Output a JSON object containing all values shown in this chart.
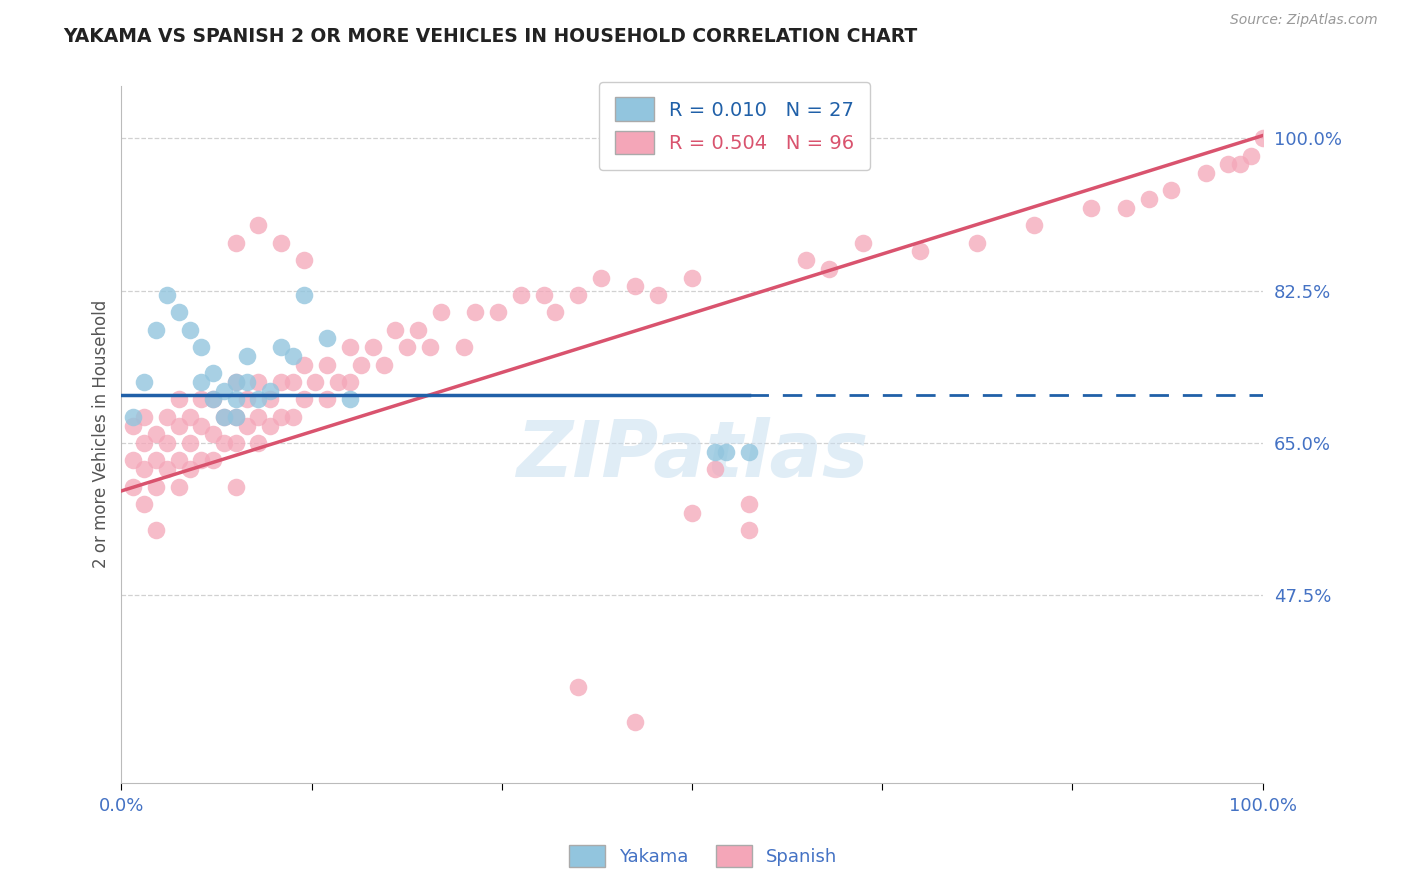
{
  "title": "YAKAMA VS SPANISH 2 OR MORE VEHICLES IN HOUSEHOLD CORRELATION CHART",
  "source_text": "Source: ZipAtlas.com",
  "ylabel": "2 or more Vehicles in Household",
  "yakama_R": 0.01,
  "yakama_N": 27,
  "spanish_R": 0.504,
  "spanish_N": 96,
  "x_min": 0.0,
  "x_max": 1.0,
  "y_min": 0.26,
  "y_max": 1.06,
  "y_ticks": [
    0.475,
    0.65,
    0.825,
    1.0
  ],
  "y_tick_labels": [
    "47.5%",
    "65.0%",
    "82.5%",
    "100.0%"
  ],
  "yakama_color": "#92c5de",
  "spanish_color": "#f4a6b8",
  "yakama_line_color": "#2060a8",
  "spanish_line_color": "#d9536e",
  "grid_color": "#cccccc",
  "tick_label_color": "#4472c4",
  "yakama_x": [
    0.01,
    0.02,
    0.03,
    0.04,
    0.05,
    0.06,
    0.07,
    0.07,
    0.08,
    0.08,
    0.09,
    0.09,
    0.1,
    0.1,
    0.1,
    0.11,
    0.11,
    0.12,
    0.13,
    0.14,
    0.15,
    0.16,
    0.18,
    0.2,
    0.52,
    0.53,
    0.55
  ],
  "yakama_y": [
    0.68,
    0.72,
    0.78,
    0.82,
    0.8,
    0.78,
    0.72,
    0.76,
    0.7,
    0.73,
    0.68,
    0.71,
    0.7,
    0.72,
    0.68,
    0.72,
    0.75,
    0.7,
    0.71,
    0.76,
    0.75,
    0.82,
    0.77,
    0.7,
    0.64,
    0.64,
    0.64
  ],
  "yakama_line_x0": 0.0,
  "yakama_line_x_solid_end": 0.55,
  "yakama_line_x1": 1.0,
  "yakama_line_y": 0.705,
  "spanish_line_y0": 0.595,
  "spanish_line_y1": 1.003,
  "spanish_x": [
    0.01,
    0.01,
    0.01,
    0.02,
    0.02,
    0.02,
    0.02,
    0.03,
    0.03,
    0.03,
    0.03,
    0.04,
    0.04,
    0.04,
    0.05,
    0.05,
    0.05,
    0.05,
    0.06,
    0.06,
    0.06,
    0.07,
    0.07,
    0.07,
    0.08,
    0.08,
    0.08,
    0.09,
    0.09,
    0.1,
    0.1,
    0.1,
    0.1,
    0.11,
    0.11,
    0.12,
    0.12,
    0.12,
    0.13,
    0.13,
    0.14,
    0.14,
    0.15,
    0.15,
    0.16,
    0.16,
    0.17,
    0.18,
    0.18,
    0.19,
    0.2,
    0.2,
    0.21,
    0.22,
    0.23,
    0.24,
    0.25,
    0.26,
    0.27,
    0.28,
    0.3,
    0.31,
    0.33,
    0.35,
    0.37,
    0.38,
    0.4,
    0.42,
    0.45,
    0.47,
    0.5,
    0.52,
    0.55,
    0.6,
    0.62,
    0.65,
    0.7,
    0.75,
    0.8,
    0.85,
    0.88,
    0.9,
    0.92,
    0.95,
    0.97,
    0.98,
    0.99,
    1.0,
    0.5,
    0.55,
    0.4,
    0.45,
    0.1,
    0.12,
    0.14,
    0.16
  ],
  "spanish_y": [
    0.6,
    0.63,
    0.67,
    0.58,
    0.62,
    0.65,
    0.68,
    0.6,
    0.63,
    0.66,
    0.55,
    0.62,
    0.65,
    0.68,
    0.6,
    0.63,
    0.67,
    0.7,
    0.62,
    0.65,
    0.68,
    0.63,
    0.67,
    0.7,
    0.63,
    0.66,
    0.7,
    0.65,
    0.68,
    0.65,
    0.68,
    0.72,
    0.6,
    0.67,
    0.7,
    0.65,
    0.68,
    0.72,
    0.67,
    0.7,
    0.68,
    0.72,
    0.68,
    0.72,
    0.7,
    0.74,
    0.72,
    0.7,
    0.74,
    0.72,
    0.72,
    0.76,
    0.74,
    0.76,
    0.74,
    0.78,
    0.76,
    0.78,
    0.76,
    0.8,
    0.76,
    0.8,
    0.8,
    0.82,
    0.82,
    0.8,
    0.82,
    0.84,
    0.83,
    0.82,
    0.84,
    0.62,
    0.58,
    0.86,
    0.85,
    0.88,
    0.87,
    0.88,
    0.9,
    0.92,
    0.92,
    0.93,
    0.94,
    0.96,
    0.97,
    0.97,
    0.98,
    1.0,
    0.57,
    0.55,
    0.37,
    0.33,
    0.88,
    0.9,
    0.88,
    0.86
  ]
}
